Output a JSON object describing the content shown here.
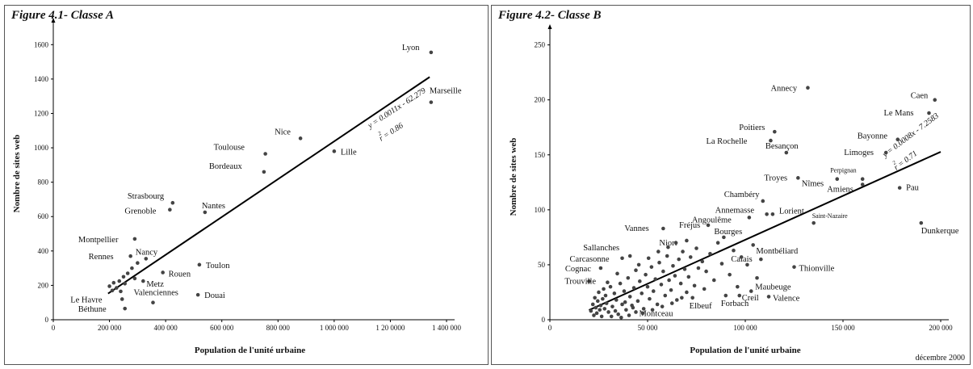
{
  "footer_note": "décembre 2000",
  "chart_data": [
    {
      "type": "scatter",
      "title": "Figure 4.1- Classe A",
      "xlabel": "Population de l'unité urbaine",
      "ylabel": "Nombre de sites web",
      "xlim": [
        0,
        1400000
      ],
      "ylim": [
        0,
        1700
      ],
      "xticks": [
        0,
        200000,
        400000,
        600000,
        800000,
        1000000,
        1200000,
        1400000
      ],
      "xtick_labels": [
        "0",
        "200 000",
        "400 000",
        "600 000",
        "800 000",
        "1 000 000",
        "1 20 0000",
        "1 400 000"
      ],
      "yticks": [
        0,
        200,
        400,
        600,
        800,
        1000,
        1200,
        1400,
        1600
      ],
      "ytick_labels": [
        "0",
        "200",
        "400",
        "600",
        "800",
        "1000",
        "1200",
        "1400",
        "1600"
      ],
      "regression": {
        "slope": 0.0011,
        "intercept": -62.279,
        "x_range": [
          195000,
          1340000
        ],
        "equation": "y = 0.0011x - 62.279",
        "r2": "r = 0.86"
      },
      "points": [
        {
          "label": "Lyon",
          "x": 1345000,
          "y": 1555
        },
        {
          "label": "Marseille",
          "x": 1345000,
          "y": 1265
        },
        {
          "label": "Nice",
          "x": 880000,
          "y": 1055
        },
        {
          "label": "Lille",
          "x": 1000000,
          "y": 980
        },
        {
          "label": "Toulouse",
          "x": 755000,
          "y": 965
        },
        {
          "label": "Bordeaux",
          "x": 750000,
          "y": 860
        },
        {
          "label": "Strasbourg",
          "x": 425000,
          "y": 680
        },
        {
          "label": "Grenoble",
          "x": 415000,
          "y": 640
        },
        {
          "label": "Nantes",
          "x": 540000,
          "y": 625
        },
        {
          "label": "Montpellier",
          "x": 290000,
          "y": 470
        },
        {
          "label": "Rennes",
          "x": 275000,
          "y": 370
        },
        {
          "label": "Nancy",
          "x": 330000,
          "y": 355
        },
        {
          "label": "Toulon",
          "x": 520000,
          "y": 320
        },
        {
          "label": "Rouen",
          "x": 390000,
          "y": 275
        },
        {
          "label": "Metz",
          "x": 320000,
          "y": 225
        },
        {
          "label": "Douai",
          "x": 515000,
          "y": 145
        },
        {
          "label": "Valenciennes",
          "x": 355000,
          "y": 100
        },
        {
          "label": "Le Havre",
          "x": 245000,
          "y": 120
        },
        {
          "label": "Béthune",
          "x": 255000,
          "y": 65
        },
        {
          "label": "",
          "x": 200000,
          "y": 195
        },
        {
          "label": "",
          "x": 215000,
          "y": 215
        },
        {
          "label": "",
          "x": 225000,
          "y": 185
        },
        {
          "label": "",
          "x": 235000,
          "y": 225
        },
        {
          "label": "",
          "x": 240000,
          "y": 165
        },
        {
          "label": "",
          "x": 250000,
          "y": 250
        },
        {
          "label": "",
          "x": 255000,
          "y": 210
        },
        {
          "label": "",
          "x": 265000,
          "y": 270
        },
        {
          "label": "",
          "x": 280000,
          "y": 300
        },
        {
          "label": "",
          "x": 290000,
          "y": 240
        },
        {
          "label": "",
          "x": 300000,
          "y": 330
        },
        {
          "label": "",
          "x": 210000,
          "y": 170
        }
      ]
    },
    {
      "type": "scatter",
      "title": "Figure 4.2- Classe B",
      "xlabel": "Population de l'unité urbaine",
      "ylabel": "Nombre de sites web",
      "xlim": [
        0,
        200000
      ],
      "ylim": [
        0,
        260
      ],
      "xticks": [
        0,
        50000,
        100000,
        150000,
        200000
      ],
      "xtick_labels": [
        "0",
        "50 000",
        "100 000",
        "150 000",
        "200 000"
      ],
      "yticks": [
        0,
        50,
        100,
        150,
        200,
        250
      ],
      "ytick_labels": [
        "0",
        "50",
        "100",
        "150",
        "200",
        "250"
      ],
      "regression": {
        "slope": 0.0008,
        "intercept": -7.2583,
        "x_range": [
          20000,
          200000
        ],
        "equation": "y = 0.0008x - 7.2583",
        "r2": "r = 0.71"
      },
      "points": [
        {
          "label": "Annecy",
          "x": 132000,
          "y": 211
        },
        {
          "label": "Caen",
          "x": 197000,
          "y": 200
        },
        {
          "label": "Le Mans",
          "x": 194000,
          "y": 188
        },
        {
          "label": "Bayonne",
          "x": 178000,
          "y": 164
        },
        {
          "label": "Limoges",
          "x": 172000,
          "y": 152
        },
        {
          "label": "Poitiers",
          "x": 115000,
          "y": 171
        },
        {
          "label": "La Rochelle",
          "x": 113000,
          "y": 163
        },
        {
          "label": "Besançon",
          "x": 121000,
          "y": 152
        },
        {
          "label": "Troyes",
          "x": 127000,
          "y": 129
        },
        {
          "label": "Nîmes",
          "x": 147000,
          "y": 128
        },
        {
          "label": "Perpignan",
          "x": 160000,
          "y": 128
        },
        {
          "label": "Amiens",
          "x": 160000,
          "y": 123
        },
        {
          "label": "Pau",
          "x": 179000,
          "y": 120
        },
        {
          "label": "Chambéry",
          "x": 109000,
          "y": 108
        },
        {
          "label": "Annemasse",
          "x": 111000,
          "y": 96
        },
        {
          "label": "Lorient",
          "x": 114000,
          "y": 96
        },
        {
          "label": "Angoulême",
          "x": 102000,
          "y": 93
        },
        {
          "label": "Saint-Nazaire",
          "x": 135000,
          "y": 88
        },
        {
          "label": "Dunkerque",
          "x": 190000,
          "y": 88
        },
        {
          "label": "Fréjus",
          "x": 81000,
          "y": 86
        },
        {
          "label": "Vannes",
          "x": 58000,
          "y": 83
        },
        {
          "label": "Bourges",
          "x": 89000,
          "y": 75
        },
        {
          "label": "Niort",
          "x": 70000,
          "y": 72
        },
        {
          "label": "Sallanches",
          "x": 41000,
          "y": 58
        },
        {
          "label": "Carcasonne",
          "x": 37000,
          "y": 56
        },
        {
          "label": "Montbéliard",
          "x": 108000,
          "y": 55
        },
        {
          "label": "Calais",
          "x": 101000,
          "y": 50
        },
        {
          "label": "Thionville",
          "x": 125000,
          "y": 48
        },
        {
          "label": "Cognac",
          "x": 26000,
          "y": 47
        },
        {
          "label": "Trouville",
          "x": 20000,
          "y": 35
        },
        {
          "label": "Maubeuge",
          "x": 103000,
          "y": 26
        },
        {
          "label": "Creil",
          "x": 97000,
          "y": 22
        },
        {
          "label": "Valence",
          "x": 112000,
          "y": 21
        },
        {
          "label": "Elbeuf",
          "x": 73000,
          "y": 20
        },
        {
          "label": "Forbach",
          "x": 90000,
          "y": 22
        },
        {
          "label": "Montceau",
          "x": 44000,
          "y": 7
        },
        {
          "label": "",
          "x": 21000,
          "y": 8
        },
        {
          "label": "",
          "x": 22000,
          "y": 14
        },
        {
          "label": "",
          "x": 22500,
          "y": 4
        },
        {
          "label": "",
          "x": 23000,
          "y": 20
        },
        {
          "label": "",
          "x": 23500,
          "y": 11
        },
        {
          "label": "",
          "x": 24000,
          "y": 6
        },
        {
          "label": "",
          "x": 24500,
          "y": 17
        },
        {
          "label": "",
          "x": 25000,
          "y": 25
        },
        {
          "label": "",
          "x": 25500,
          "y": 9
        },
        {
          "label": "",
          "x": 26000,
          "y": 13
        },
        {
          "label": "",
          "x": 26500,
          "y": 3
        },
        {
          "label": "",
          "x": 27000,
          "y": 19
        },
        {
          "label": "",
          "x": 27500,
          "y": 28
        },
        {
          "label": "",
          "x": 28000,
          "y": 10
        },
        {
          "label": "",
          "x": 28500,
          "y": 22
        },
        {
          "label": "",
          "x": 29000,
          "y": 15
        },
        {
          "label": "",
          "x": 30000,
          "y": 7
        },
        {
          "label": "",
          "x": 31000,
          "y": 30
        },
        {
          "label": "",
          "x": 32000,
          "y": 12
        },
        {
          "label": "",
          "x": 33000,
          "y": 24
        },
        {
          "label": "",
          "x": 34000,
          "y": 18
        },
        {
          "label": "",
          "x": 35000,
          "y": 5
        },
        {
          "label": "",
          "x": 36000,
          "y": 33
        },
        {
          "label": "",
          "x": 37000,
          "y": 14
        },
        {
          "label": "",
          "x": 38000,
          "y": 26
        },
        {
          "label": "",
          "x": 39000,
          "y": 9
        },
        {
          "label": "",
          "x": 40000,
          "y": 38
        },
        {
          "label": "",
          "x": 41000,
          "y": 21
        },
        {
          "label": "",
          "x": 42000,
          "y": 13
        },
        {
          "label": "",
          "x": 43000,
          "y": 29
        },
        {
          "label": "",
          "x": 44000,
          "y": 45
        },
        {
          "label": "",
          "x": 45000,
          "y": 17
        },
        {
          "label": "",
          "x": 46000,
          "y": 35
        },
        {
          "label": "",
          "x": 47000,
          "y": 24
        },
        {
          "label": "",
          "x": 48000,
          "y": 10
        },
        {
          "label": "",
          "x": 49000,
          "y": 41
        },
        {
          "label": "",
          "x": 50000,
          "y": 30
        },
        {
          "label": "",
          "x": 51000,
          "y": 19
        },
        {
          "label": "",
          "x": 52000,
          "y": 48
        },
        {
          "label": "",
          "x": 53000,
          "y": 26
        },
        {
          "label": "",
          "x": 54000,
          "y": 37
        },
        {
          "label": "",
          "x": 55000,
          "y": 14
        },
        {
          "label": "",
          "x": 56000,
          "y": 52
        },
        {
          "label": "",
          "x": 57000,
          "y": 32
        },
        {
          "label": "",
          "x": 58000,
          "y": 44
        },
        {
          "label": "",
          "x": 59000,
          "y": 22
        },
        {
          "label": "",
          "x": 60000,
          "y": 58
        },
        {
          "label": "",
          "x": 61000,
          "y": 36
        },
        {
          "label": "",
          "x": 62000,
          "y": 27
        },
        {
          "label": "",
          "x": 63000,
          "y": 49
        },
        {
          "label": "",
          "x": 64000,
          "y": 40
        },
        {
          "label": "",
          "x": 65000,
          "y": 18
        },
        {
          "label": "",
          "x": 66000,
          "y": 55
        },
        {
          "label": "",
          "x": 67000,
          "y": 33
        },
        {
          "label": "",
          "x": 68000,
          "y": 62
        },
        {
          "label": "",
          "x": 69000,
          "y": 46
        },
        {
          "label": "",
          "x": 70000,
          "y": 25
        },
        {
          "label": "",
          "x": 71000,
          "y": 39
        },
        {
          "label": "",
          "x": 72000,
          "y": 57
        },
        {
          "label": "",
          "x": 74000,
          "y": 31
        },
        {
          "label": "",
          "x": 75000,
          "y": 65
        },
        {
          "label": "",
          "x": 76000,
          "y": 47
        },
        {
          "label": "",
          "x": 78000,
          "y": 53
        },
        {
          "label": "",
          "x": 79000,
          "y": 28
        },
        {
          "label": "",
          "x": 80000,
          "y": 44
        },
        {
          "label": "",
          "x": 82000,
          "y": 60
        },
        {
          "label": "",
          "x": 84000,
          "y": 36
        },
        {
          "label": "",
          "x": 86000,
          "y": 70
        },
        {
          "label": "",
          "x": 88000,
          "y": 51
        },
        {
          "label": "",
          "x": 92000,
          "y": 41
        },
        {
          "label": "",
          "x": 94000,
          "y": 63
        },
        {
          "label": "",
          "x": 96000,
          "y": 30
        },
        {
          "label": "",
          "x": 98000,
          "y": 57
        },
        {
          "label": "",
          "x": 104000,
          "y": 68
        },
        {
          "label": "",
          "x": 106000,
          "y": 38
        },
        {
          "label": "",
          "x": 31500,
          "y": 3
        },
        {
          "label": "",
          "x": 33500,
          "y": 8
        },
        {
          "label": "",
          "x": 36500,
          "y": 2
        },
        {
          "label": "",
          "x": 38500,
          "y": 16
        },
        {
          "label": "",
          "x": 40500,
          "y": 4
        },
        {
          "label": "",
          "x": 42500,
          "y": 11
        },
        {
          "label": "",
          "x": 47500,
          "y": 6
        },
        {
          "label": "",
          "x": 52500,
          "y": 9
        },
        {
          "label": "",
          "x": 57500,
          "y": 12
        },
        {
          "label": "",
          "x": 62500,
          "y": 15
        },
        {
          "label": "",
          "x": 67500,
          "y": 20
        },
        {
          "label": "",
          "x": 29500,
          "y": 34
        },
        {
          "label": "",
          "x": 34500,
          "y": 42
        },
        {
          "label": "",
          "x": 45500,
          "y": 50
        },
        {
          "label": "",
          "x": 50500,
          "y": 56
        },
        {
          "label": "",
          "x": 55500,
          "y": 62
        },
        {
          "label": "",
          "x": 60500,
          "y": 66
        },
        {
          "label": "",
          "x": 64500,
          "y": 70
        }
      ]
    }
  ]
}
